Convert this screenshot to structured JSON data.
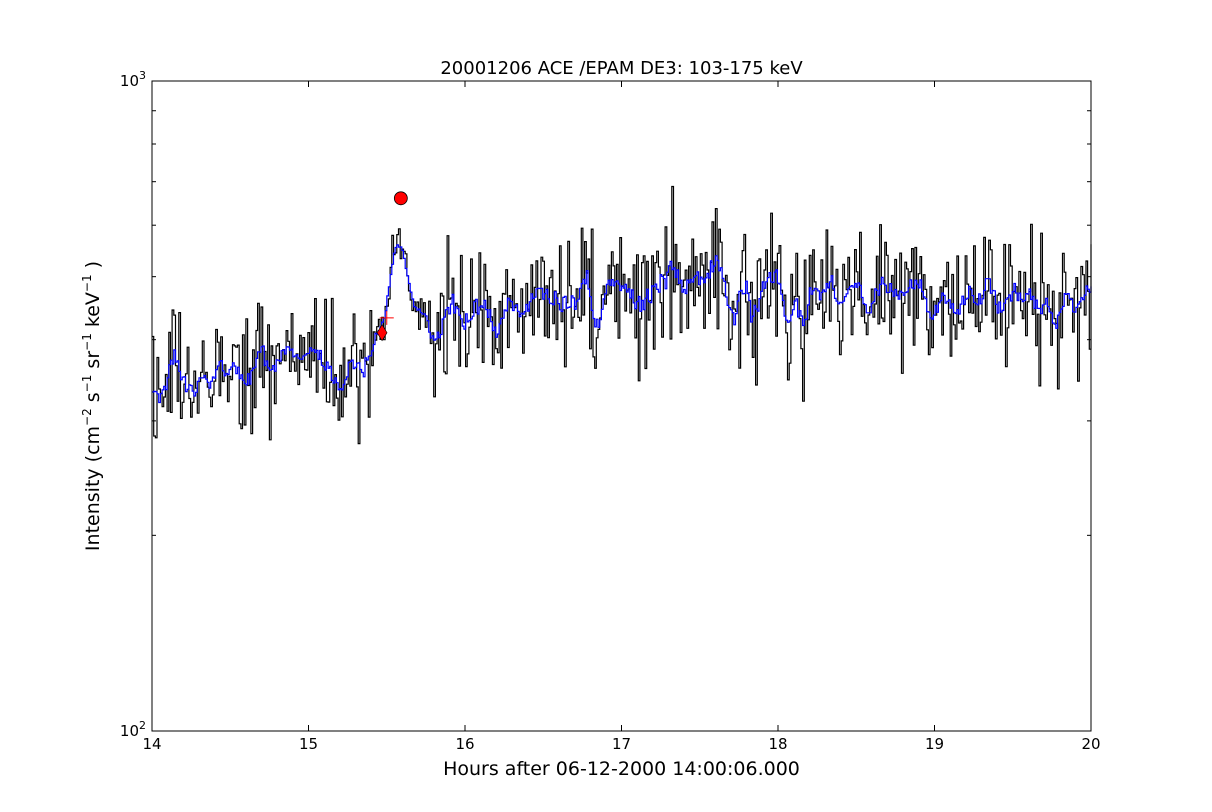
{
  "chart_data": {
    "type": "line",
    "title": "20001206 ACE /EPAM DE3: 103-175 keV",
    "xlabel": "Hours after 06-12-2000 14:00:06.000",
    "ylabel": {
      "prefix": "Intensity (cm",
      "sup1": "−2",
      "mid1": " s",
      "sup2": "−1",
      "mid2": " sr",
      "sup3": "−1",
      "mid3": " keV",
      "sup4": "−1",
      "suffix": " )"
    },
    "y_scale": "log",
    "xlim": [
      14,
      20
    ],
    "ylim": [
      100,
      1000
    ],
    "x_ticks": [
      "14",
      "15",
      "16",
      "17",
      "18",
      "19",
      "20"
    ],
    "y_ticks": [
      {
        "base": "10",
        "exp": "2"
      },
      {
        "base": "10",
        "exp": "3"
      }
    ],
    "series": [
      {
        "color": "#000000",
        "style": "steps",
        "description": "raw intensity",
        "anchors": [
          [
            14.0,
            365
          ],
          [
            14.2,
            360
          ],
          [
            14.4,
            362
          ],
          [
            14.6,
            358
          ],
          [
            14.8,
            360
          ],
          [
            15.0,
            360
          ],
          [
            15.2,
            358
          ],
          [
            15.3,
            360
          ],
          [
            15.38,
            372
          ],
          [
            15.43,
            390
          ],
          [
            15.47,
            415
          ],
          [
            15.5,
            470
          ],
          [
            15.54,
            555
          ],
          [
            15.58,
            575
          ],
          [
            15.62,
            530
          ],
          [
            15.66,
            470
          ],
          [
            15.72,
            430
          ],
          [
            15.8,
            425
          ],
          [
            15.9,
            428
          ],
          [
            16.0,
            440
          ],
          [
            16.2,
            455
          ],
          [
            16.5,
            468
          ],
          [
            17.0,
            475
          ],
          [
            17.5,
            470
          ],
          [
            18.0,
            468
          ],
          [
            18.5,
            475
          ],
          [
            19.0,
            480
          ],
          [
            19.3,
            465
          ],
          [
            19.6,
            460
          ],
          [
            20.0,
            458
          ]
        ],
        "noise_log_amp": 0.115,
        "seed": 12061
      },
      {
        "color": "#0000ff",
        "style": "steps",
        "description": "smoothed intensity",
        "smoothing_window": 3
      }
    ],
    "markers": [
      {
        "label": "onset diamond",
        "x": 15.47,
        "y": 410,
        "shape": "diamond",
        "color": "#ff0000"
      },
      {
        "label": "onset plus",
        "x": 15.5,
        "y": 432,
        "shape": "plus",
        "color": "#ff0000"
      },
      {
        "label": "peak circle",
        "x": 15.59,
        "y": 660,
        "shape": "circle",
        "color": "#ff0000"
      }
    ],
    "grid": false,
    "legend": "none"
  }
}
